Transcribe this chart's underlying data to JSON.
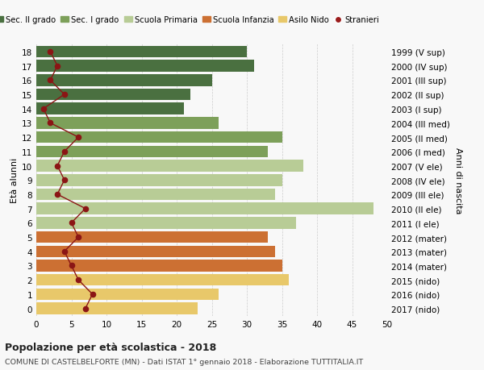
{
  "ages": [
    18,
    17,
    16,
    15,
    14,
    13,
    12,
    11,
    10,
    9,
    8,
    7,
    6,
    5,
    4,
    3,
    2,
    1,
    0
  ],
  "right_labels": [
    "1999 (V sup)",
    "2000 (IV sup)",
    "2001 (III sup)",
    "2002 (II sup)",
    "2003 (I sup)",
    "2004 (III med)",
    "2005 (II med)",
    "2006 (I med)",
    "2007 (V ele)",
    "2008 (IV ele)",
    "2009 (III ele)",
    "2010 (II ele)",
    "2011 (I ele)",
    "2012 (mater)",
    "2013 (mater)",
    "2014 (mater)",
    "2015 (nido)",
    "2016 (nido)",
    "2017 (nido)"
  ],
  "bar_values": [
    30,
    31,
    25,
    22,
    21,
    26,
    35,
    33,
    38,
    35,
    34,
    48,
    37,
    33,
    34,
    35,
    36,
    26,
    23
  ],
  "bar_colors": [
    "#4a7040",
    "#4a7040",
    "#4a7040",
    "#4a7040",
    "#4a7040",
    "#7da05a",
    "#7da05a",
    "#7da05a",
    "#b8cc96",
    "#b8cc96",
    "#b8cc96",
    "#b8cc96",
    "#b8cc96",
    "#cc7033",
    "#cc7033",
    "#cc7033",
    "#e8c86a",
    "#e8c86a",
    "#e8c86a"
  ],
  "stranieri_values": [
    2,
    3,
    2,
    4,
    1,
    2,
    6,
    4,
    3,
    4,
    3,
    7,
    5,
    6,
    4,
    5,
    6,
    8,
    7
  ],
  "legend_labels": [
    "Sec. II grado",
    "Sec. I grado",
    "Scuola Primaria",
    "Scuola Infanzia",
    "Asilo Nido",
    "Stranieri"
  ],
  "legend_colors": [
    "#4a7040",
    "#7da05a",
    "#b8cc96",
    "#cc7033",
    "#e8c86a",
    "#9b1c1c"
  ],
  "title1": "Popolazione per età scolastica - 2018",
  "title2": "COMUNE DI CASTELBELFORTE (MN) - Dati ISTAT 1° gennaio 2018 - Elaborazione TUTTITALIA.IT",
  "ylabel_left": "Età alunni",
  "ylabel_right": "Anni di nascita",
  "xlim": [
    0,
    50
  ],
  "xticks": [
    0,
    5,
    10,
    15,
    20,
    25,
    30,
    35,
    40,
    45,
    50
  ],
  "bg_color": "#f8f8f8",
  "grid_color": "#cccccc",
  "stranieri_dot_color": "#8b1515",
  "stranieri_line_color": "#8b1515"
}
